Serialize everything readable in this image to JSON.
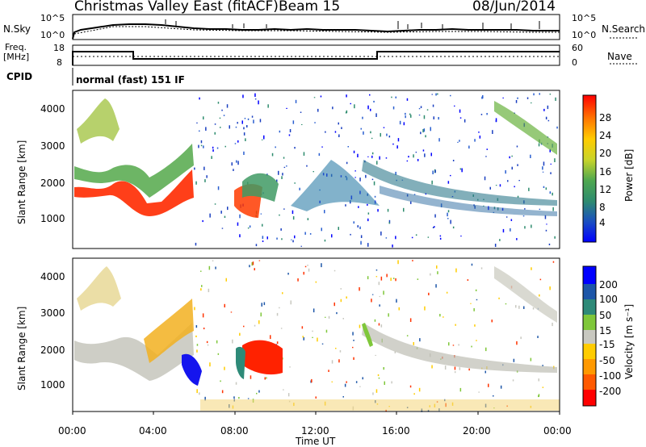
{
  "header": {
    "station": "Christmas Valley East (fitACF)",
    "beam": "Beam 15",
    "date": "08/Jun/2014"
  },
  "noise_panel": {
    "left_label": "N.Sky",
    "right_label": "N.Search",
    "left_ticks": [
      "10^5",
      "10^0"
    ],
    "right_ticks": [
      "10^5",
      "10^0"
    ]
  },
  "freq_panel": {
    "left_label_1": "Freq.",
    "left_label_2": "[MHz]",
    "right_label": "Nave",
    "left_ticks": [
      "18",
      "8"
    ],
    "right_ticks": [
      "60",
      "0"
    ]
  },
  "cpid": {
    "label": "CPID",
    "mode": "normal (fast) 151 IF"
  },
  "chart_data": [
    {
      "type": "heatmap",
      "name": "power",
      "ylabel": "Slant Range [km]",
      "yticks": [
        "4000",
        "3000",
        "2000",
        "1000"
      ],
      "colorbar_label": "Power [dB]",
      "colorbar_ticks": [
        "28",
        "24",
        "20",
        "16",
        "12",
        "8",
        "4"
      ],
      "colorbar_colors": [
        "#0000ff",
        "#1a4fc0",
        "#2e8c6e",
        "#4fa84f",
        "#7fc73a",
        "#c8d42a",
        "#ffcc00",
        "#ff9900",
        "#ff5a00",
        "#ff0000"
      ]
    },
    {
      "type": "heatmap",
      "name": "velocity",
      "ylabel": "Slant Range [km]",
      "yticks": [
        "4000",
        "3000",
        "2000",
        "1000"
      ],
      "xlabel": "Time UT",
      "xticks": [
        "00:00",
        "04:00",
        "08:00",
        "12:00",
        "16:00",
        "20:00",
        "00:00"
      ],
      "colorbar_label": "Velocity [m s⁻¹]",
      "colorbar_ticks": [
        "200",
        "100",
        "50",
        "15",
        "-15",
        "-50",
        "-100",
        "-200"
      ],
      "colorbar_colors": [
        "#0000ff",
        "#1d56a8",
        "#2e8a78",
        "#7fc73a",
        "#c8c8c0",
        "#ffcc00",
        "#ff9900",
        "#ff5a00",
        "#ff0000"
      ]
    }
  ]
}
